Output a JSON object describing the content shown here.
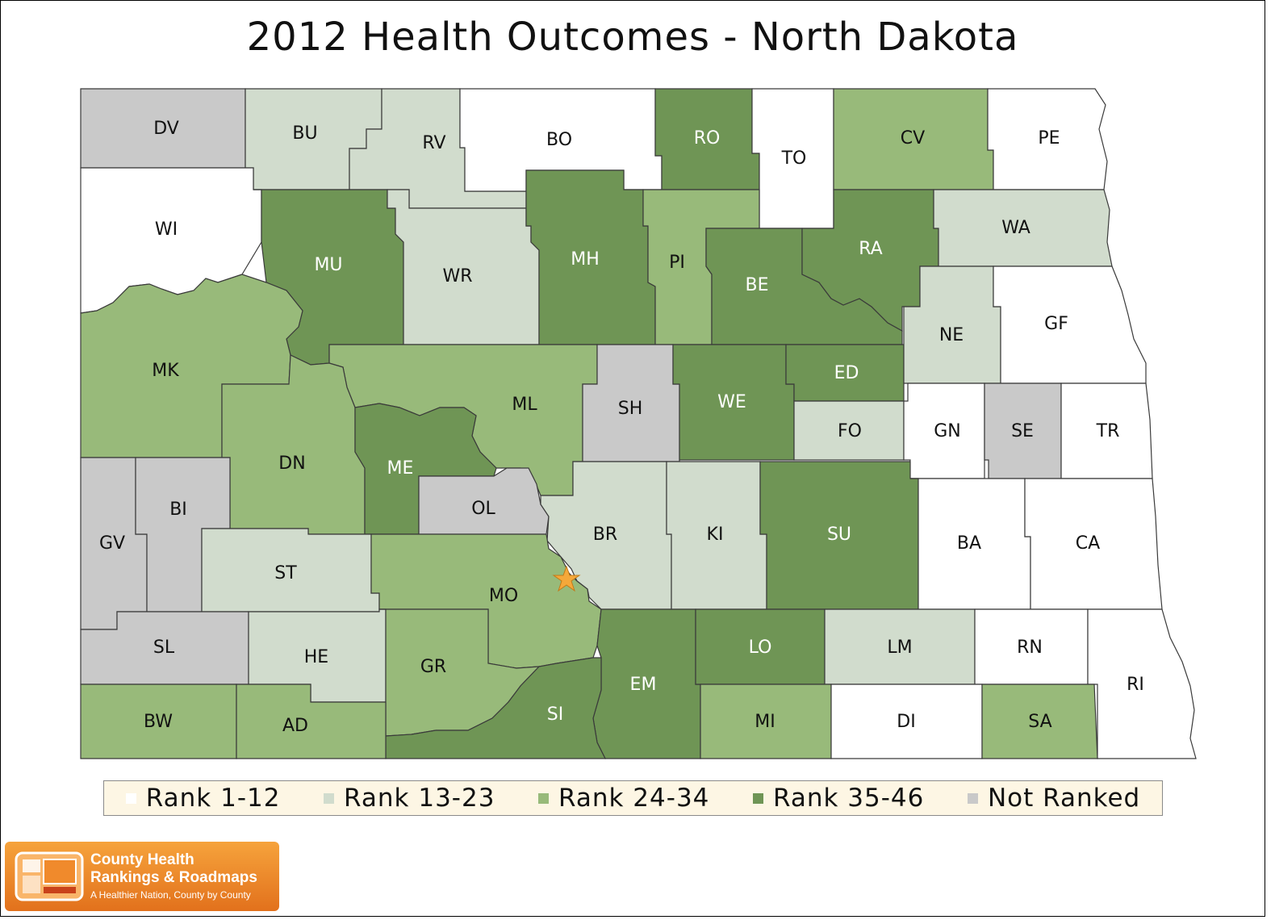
{
  "title": "2012 Health Outcomes - North Dakota",
  "colors": {
    "rank_1_12": "#ffffff",
    "rank_13_23": "#d1dccd",
    "rank_24_34": "#98ba7a",
    "rank_35_46": "#6f9555",
    "not_ranked": "#c9c9c9",
    "star": "#f5a83a"
  },
  "legend": [
    {
      "key": "rank_1_12",
      "label": "Rank 1-12"
    },
    {
      "key": "rank_13_23",
      "label": "Rank 13-23"
    },
    {
      "key": "rank_24_34",
      "label": "Rank 24-34"
    },
    {
      "key": "rank_35_46",
      "label": "Rank 35-46"
    },
    {
      "key": "not_ranked",
      "label": "Not Ranked"
    }
  ],
  "counties": [
    {
      "code": "DV",
      "tier": "not_ranked"
    },
    {
      "code": "BU",
      "tier": "rank_13_23"
    },
    {
      "code": "RV",
      "tier": "rank_13_23"
    },
    {
      "code": "BO",
      "tier": "rank_1_12"
    },
    {
      "code": "RO",
      "tier": "rank_35_46"
    },
    {
      "code": "TO",
      "tier": "rank_1_12"
    },
    {
      "code": "CV",
      "tier": "rank_24_34"
    },
    {
      "code": "PE",
      "tier": "rank_1_12"
    },
    {
      "code": "WI",
      "tier": "rank_1_12"
    },
    {
      "code": "MU",
      "tier": "rank_35_46"
    },
    {
      "code": "WR",
      "tier": "rank_13_23"
    },
    {
      "code": "MH",
      "tier": "rank_35_46"
    },
    {
      "code": "PI",
      "tier": "rank_24_34"
    },
    {
      "code": "BE",
      "tier": "rank_35_46"
    },
    {
      "code": "RA",
      "tier": "rank_35_46"
    },
    {
      "code": "WA",
      "tier": "rank_13_23"
    },
    {
      "code": "MK",
      "tier": "rank_24_34"
    },
    {
      "code": "ML",
      "tier": "rank_24_34"
    },
    {
      "code": "SH",
      "tier": "not_ranked"
    },
    {
      "code": "WE",
      "tier": "rank_35_46"
    },
    {
      "code": "ED",
      "tier": "rank_35_46"
    },
    {
      "code": "NE",
      "tier": "rank_13_23"
    },
    {
      "code": "GF",
      "tier": "rank_1_12"
    },
    {
      "code": "DN",
      "tier": "rank_24_34"
    },
    {
      "code": "ME",
      "tier": "rank_35_46"
    },
    {
      "code": "FO",
      "tier": "rank_13_23"
    },
    {
      "code": "GN",
      "tier": "rank_1_12"
    },
    {
      "code": "SE",
      "tier": "not_ranked"
    },
    {
      "code": "TR",
      "tier": "rank_1_12"
    },
    {
      "code": "GV",
      "tier": "not_ranked"
    },
    {
      "code": "BI",
      "tier": "not_ranked"
    },
    {
      "code": "OL",
      "tier": "not_ranked"
    },
    {
      "code": "BR",
      "tier": "rank_13_23"
    },
    {
      "code": "KI",
      "tier": "rank_13_23"
    },
    {
      "code": "SU",
      "tier": "rank_35_46"
    },
    {
      "code": "BA",
      "tier": "rank_1_12"
    },
    {
      "code": "CA",
      "tier": "rank_1_12"
    },
    {
      "code": "ST",
      "tier": "rank_13_23"
    },
    {
      "code": "MO",
      "tier": "rank_24_34"
    },
    {
      "code": "SL",
      "tier": "not_ranked"
    },
    {
      "code": "HE",
      "tier": "rank_13_23"
    },
    {
      "code": "GR",
      "tier": "rank_24_34"
    },
    {
      "code": "EM",
      "tier": "rank_35_46"
    },
    {
      "code": "LO",
      "tier": "rank_35_46"
    },
    {
      "code": "LM",
      "tier": "rank_13_23"
    },
    {
      "code": "RN",
      "tier": "rank_1_12"
    },
    {
      "code": "RI",
      "tier": "rank_1_12"
    },
    {
      "code": "SI",
      "tier": "rank_35_46"
    },
    {
      "code": "BW",
      "tier": "rank_24_34"
    },
    {
      "code": "AD",
      "tier": "rank_24_34"
    },
    {
      "code": "MI",
      "tier": "rank_24_34"
    },
    {
      "code": "DI",
      "tier": "rank_1_12"
    },
    {
      "code": "SA",
      "tier": "rank_24_34"
    }
  ],
  "capital_marker": "star",
  "logo": {
    "line1": "County Health",
    "line2": "Rankings & Roadmaps",
    "tagline": "A Healthier Nation, County by County"
  }
}
